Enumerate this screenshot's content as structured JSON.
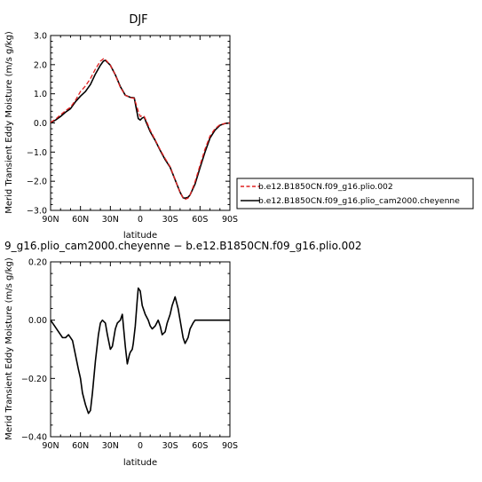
{
  "chart_data": [
    {
      "type": "line",
      "title": "DJF",
      "xlabel": "latitude",
      "ylabel": "Merid Transient Eddy Moisture (m/s g/kg)",
      "xlim": [
        -90,
        90
      ],
      "ylim": [
        -3.0,
        3.0
      ],
      "x_ticks": [
        -90,
        -60,
        -30,
        0,
        30,
        60,
        90
      ],
      "x_tick_labels": [
        "90N",
        "60N",
        "30N",
        "0",
        "30S",
        "60S",
        "90S"
      ],
      "y_ticks": [
        -3.0,
        -2.0,
        -1.0,
        0.0,
        1.0,
        2.0,
        3.0
      ],
      "y_tick_labels": [
        "−3.0",
        "−2.0",
        "−1.0",
        "0.0",
        "1.0",
        "2.0",
        "3.0"
      ],
      "legend": {
        "placement": "right",
        "entries": [
          {
            "label": "b.e12.B1850CN.f09_g16.plio.002",
            "color": "#e02020",
            "style": "dashed"
          },
          {
            "label": "b.e12.B1850CN.f09_g16.plio_cam2000.cheyenne",
            "color": "#000000",
            "style": "solid"
          }
        ]
      },
      "series": [
        {
          "name": "b.e12.B1850CN.f09_g16.plio.002",
          "color": "#e02020",
          "style": "dashed",
          "x": [
            -90,
            -85,
            -80,
            -75,
            -70,
            -65,
            -60,
            -55,
            -50,
            -45,
            -40,
            -37,
            -35,
            -30,
            -25,
            -20,
            -15,
            -10,
            -6,
            -4,
            -2,
            0,
            2,
            4,
            6,
            10,
            15,
            20,
            25,
            30,
            35,
            40,
            43,
            45,
            48,
            50,
            55,
            60,
            65,
            70,
            75,
            80,
            85,
            90
          ],
          "y": [
            0.02,
            0.13,
            0.28,
            0.42,
            0.54,
            0.78,
            1.08,
            1.27,
            1.52,
            1.85,
            2.12,
            2.2,
            2.18,
            1.98,
            1.65,
            1.22,
            0.95,
            0.87,
            0.84,
            0.63,
            0.4,
            0.22,
            0.25,
            0.22,
            0.08,
            -0.25,
            -0.58,
            -0.92,
            -1.22,
            -1.5,
            -1.95,
            -2.38,
            -2.58,
            -2.62,
            -2.58,
            -2.47,
            -2.02,
            -1.45,
            -0.9,
            -0.45,
            -0.2,
            -0.06,
            -0.02,
            0.0
          ]
        },
        {
          "name": "b.e12.B1850CN.f09_g16.plio_cam2000.cheyenne",
          "color": "#000000",
          "style": "solid",
          "x": [
            -90,
            -85,
            -80,
            -75,
            -70,
            -65,
            -60,
            -55,
            -50,
            -45,
            -40,
            -37,
            -35,
            -30,
            -25,
            -20,
            -15,
            -10,
            -6,
            -4,
            -2,
            0,
            2,
            4,
            6,
            10,
            15,
            20,
            25,
            30,
            35,
            40,
            43,
            45,
            48,
            50,
            55,
            60,
            65,
            70,
            75,
            80,
            85,
            90
          ],
          "y": [
            0.0,
            0.1,
            0.22,
            0.37,
            0.49,
            0.73,
            0.92,
            1.08,
            1.32,
            1.68,
            1.98,
            2.12,
            2.15,
            1.98,
            1.65,
            1.25,
            0.95,
            0.88,
            0.86,
            0.5,
            0.15,
            0.1,
            0.17,
            0.2,
            0.02,
            -0.3,
            -0.6,
            -0.94,
            -1.26,
            -1.52,
            -1.95,
            -2.38,
            -2.57,
            -2.58,
            -2.55,
            -2.47,
            -2.1,
            -1.54,
            -1.0,
            -0.52,
            -0.25,
            -0.08,
            -0.02,
            0.0
          ]
        }
      ]
    },
    {
      "type": "line",
      "title": "9_g16.plio_cam2000.cheyenne − b.e12.B1850CN.f09_g16.plio.002",
      "xlabel": "latitude",
      "ylabel": "Merid Transient Eddy Moisture (m/s g/kg)",
      "xlim": [
        -90,
        90
      ],
      "ylim": [
        -0.4,
        0.2
      ],
      "x_ticks": [
        -90,
        -60,
        -30,
        0,
        30,
        60,
        90
      ],
      "x_tick_labels": [
        "90N",
        "60N",
        "30N",
        "0",
        "30S",
        "60S",
        "90S"
      ],
      "y_ticks": [
        -0.4,
        -0.2,
        0.0,
        0.2
      ],
      "y_tick_labels": [
        "−0.40",
        "−0.20",
        "0.00",
        "0.20"
      ],
      "series": [
        {
          "color": "#000000",
          "style": "solid",
          "x": [
            -90,
            -86,
            -82,
            -78,
            -75,
            -72,
            -68,
            -65,
            -62,
            -60,
            -58,
            -55,
            -52,
            -50,
            -48,
            -45,
            -42,
            -40,
            -38,
            -35,
            -33,
            -30,
            -28,
            -25,
            -23,
            -20,
            -18,
            -15,
            -13,
            -11,
            -10,
            -8,
            -7,
            -5,
            -3,
            -2,
            0,
            2,
            4,
            5,
            8,
            10,
            12,
            15,
            18,
            20,
            22,
            25,
            27,
            30,
            32,
            35,
            38,
            40,
            43,
            45,
            48,
            50,
            53,
            55,
            58,
            60,
            62,
            65,
            68,
            70,
            72,
            75,
            78,
            80,
            84,
            87,
            90
          ],
          "y": [
            0.0,
            -0.02,
            -0.04,
            -0.06,
            -0.06,
            -0.05,
            -0.07,
            -0.12,
            -0.17,
            -0.2,
            -0.25,
            -0.29,
            -0.32,
            -0.31,
            -0.25,
            -0.14,
            -0.05,
            -0.01,
            0.0,
            -0.01,
            -0.05,
            -0.1,
            -0.09,
            -0.03,
            -0.01,
            0.0,
            0.02,
            -0.09,
            -0.15,
            -0.12,
            -0.11,
            -0.1,
            -0.08,
            -0.02,
            0.07,
            0.11,
            0.1,
            0.05,
            0.03,
            0.02,
            0.0,
            -0.02,
            -0.03,
            -0.02,
            0.0,
            -0.02,
            -0.05,
            -0.04,
            -0.01,
            0.02,
            0.05,
            0.08,
            0.04,
            0.0,
            -0.06,
            -0.08,
            -0.06,
            -0.03,
            -0.01,
            0.0,
            0.0,
            0.0,
            0.0,
            0.0,
            0.0,
            0.0,
            0.0,
            0.0,
            0.0,
            0.0,
            0.0,
            0.0,
            0.0
          ]
        }
      ]
    }
  ]
}
